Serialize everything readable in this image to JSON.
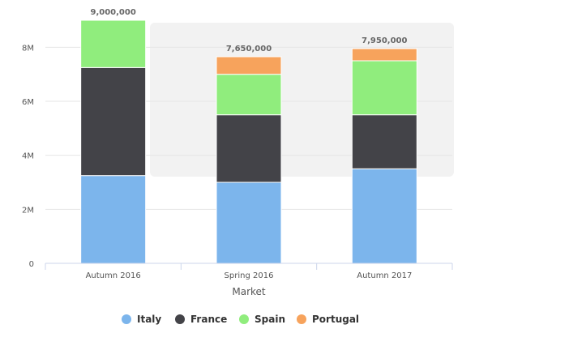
{
  "chart_data": {
    "type": "bar",
    "stacked": true,
    "title": "",
    "xlabel": "Market",
    "ylabel": "",
    "ylim": [
      0,
      9000000
    ],
    "yticks": [
      0,
      2000000,
      4000000,
      6000000,
      8000000
    ],
    "yticklabels": [
      "0",
      "2M",
      "4M",
      "6M",
      "8M"
    ],
    "grid": true,
    "legend_position": "bottom",
    "categories": [
      "Autumn 2016",
      "Spring 2016",
      "Autumn 2017"
    ],
    "series": [
      {
        "name": "Italy",
        "color": "#7cb5ec",
        "values": [
          3250000,
          3000000,
          3500000
        ]
      },
      {
        "name": "France",
        "color": "#434348",
        "values": [
          4000000,
          2500000,
          2000000
        ]
      },
      {
        "name": "Spain",
        "color": "#90ed7d",
        "values": [
          1750000,
          1500000,
          2000000
        ]
      },
      {
        "name": "Portugal",
        "color": "#f7a35c",
        "values": [
          0,
          650000,
          450000
        ]
      }
    ],
    "totals": [
      9000000,
      7650000,
      7950000
    ],
    "total_labels": [
      "9,000,000",
      "7,650,000",
      "7,950,000"
    ]
  }
}
